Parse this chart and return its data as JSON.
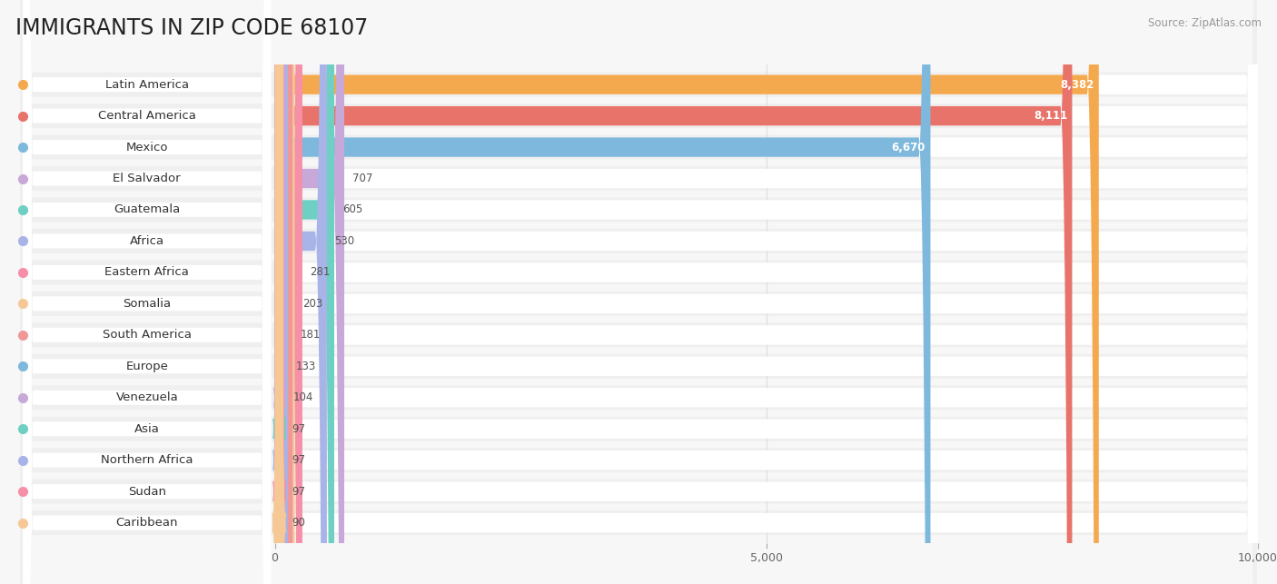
{
  "title": "IMMIGRANTS IN ZIP CODE 68107",
  "source_text": "Source: ZipAtlas.com",
  "categories": [
    "Latin America",
    "Central America",
    "Mexico",
    "El Salvador",
    "Guatemala",
    "Africa",
    "Eastern Africa",
    "Somalia",
    "South America",
    "Europe",
    "Venezuela",
    "Asia",
    "Northern Africa",
    "Sudan",
    "Caribbean"
  ],
  "values": [
    8382,
    8111,
    6670,
    707,
    605,
    530,
    281,
    203,
    181,
    133,
    104,
    97,
    97,
    97,
    90
  ],
  "bar_colors": [
    "#F5A94E",
    "#E8736A",
    "#7EB8DC",
    "#C8A8D8",
    "#6ECFC3",
    "#A8B4E8",
    "#F590A8",
    "#F5C896",
    "#F09898",
    "#A8B4E8",
    "#C8A8D8",
    "#6ECFC3",
    "#A8B4E8",
    "#F590A8",
    "#F5C896"
  ],
  "dot_colors": [
    "#F5A94E",
    "#E8736A",
    "#7EB8DC",
    "#C8A8D8",
    "#6ECFC3",
    "#A8B4E8",
    "#F590A8",
    "#F5C896",
    "#F09898",
    "#7EB8DC",
    "#C8A8D8",
    "#6ECFC3",
    "#A8B4E8",
    "#F590A8",
    "#F5C896"
  ],
  "xlim": [
    0,
    10000
  ],
  "xticks": [
    0,
    5000,
    10000
  ],
  "xtick_labels": [
    "0",
    "5,000",
    "10,000"
  ],
  "background_color": "#f7f7f7",
  "bar_background": "#ffffff",
  "title_fontsize": 17,
  "label_fontsize": 9.5,
  "value_fontsize": 8.5
}
